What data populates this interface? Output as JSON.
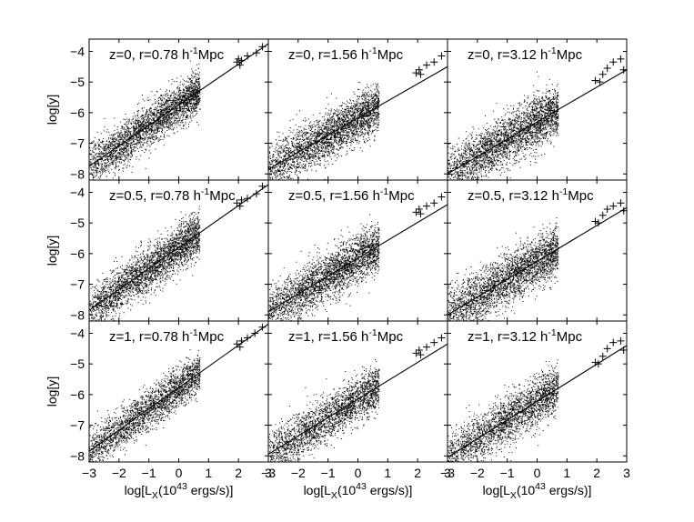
{
  "chart_data": {
    "type": "scatter",
    "layout": "3x3 panel grid",
    "shared_axes": {
      "xlabel": "log[L_X(10^43 ergs/s)]",
      "ylabel": "log[y]",
      "xlim": [
        -3,
        3
      ],
      "ylim": [
        -8.2,
        -3.6
      ],
      "xticks": [
        -3,
        -2,
        -1,
        0,
        1,
        2,
        3
      ],
      "yticks": [
        -8,
        -7,
        -6,
        -5,
        -4
      ],
      "grid": false
    },
    "panels": [
      {
        "row": 0,
        "col": 0,
        "title": "z=0, r=0.78 h^-1Mpc",
        "fit_line": [
          [
            -3,
            -7.75
          ],
          [
            3,
            -3.75
          ]
        ],
        "scatter": {
          "x_range": [
            -3,
            0.5
          ],
          "center_slope": 0.66,
          "center_intercept": -5.75,
          "spread": 0.35,
          "count": 3000
        },
        "crosses": [
          [
            1.95,
            -4.35
          ],
          [
            2.0,
            -4.25
          ],
          [
            2.05,
            -4.45
          ],
          [
            2.1,
            -4.3
          ],
          [
            2.3,
            -4.15
          ],
          [
            2.6,
            -4.05
          ],
          [
            2.8,
            -3.85
          ]
        ]
      },
      {
        "row": 0,
        "col": 1,
        "title": "z=0, r=1.56 h^-1Mpc",
        "fit_line": [
          [
            -3,
            -7.85
          ],
          [
            3,
            -4.5
          ]
        ],
        "scatter": {
          "x_range": [
            -3,
            0.5
          ],
          "center_slope": 0.56,
          "center_intercept": -6.17,
          "spread": 0.38,
          "count": 3000
        },
        "crosses": [
          [
            1.95,
            -4.7
          ],
          [
            2.05,
            -4.6
          ],
          [
            2.1,
            -4.75
          ],
          [
            2.3,
            -4.45
          ],
          [
            2.55,
            -4.35
          ],
          [
            2.8,
            -4.15
          ]
        ]
      },
      {
        "row": 0,
        "col": 2,
        "title": "z=0, r=3.12 h^-1Mpc",
        "fit_line": [
          [
            -3,
            -8.0
          ],
          [
            3,
            -4.6
          ]
        ],
        "scatter": {
          "x_range": [
            -3,
            0.5
          ],
          "center_slope": 0.56,
          "center_intercept": -6.3,
          "spread": 0.42,
          "count": 3000
        },
        "crosses": [
          [
            1.95,
            -4.95
          ],
          [
            2.1,
            -5.0
          ],
          [
            2.2,
            -4.75
          ],
          [
            2.35,
            -4.55
          ],
          [
            2.55,
            -4.35
          ],
          [
            2.8,
            -4.25
          ],
          [
            2.9,
            -4.6
          ]
        ]
      },
      {
        "row": 1,
        "col": 0,
        "title": "z=0.5, r=0.78 h^-1Mpc",
        "fit_line": [
          [
            -3,
            -7.85
          ],
          [
            3,
            -3.75
          ]
        ],
        "scatter": {
          "x_range": [
            -3,
            0.5
          ],
          "center_slope": 0.68,
          "center_intercept": -5.8,
          "spread": 0.36,
          "count": 3000
        },
        "crosses": [
          [
            1.95,
            -4.35
          ],
          [
            2.05,
            -4.45
          ],
          [
            2.1,
            -4.25
          ],
          [
            2.3,
            -4.2
          ],
          [
            2.6,
            -4.05
          ],
          [
            2.8,
            -3.8
          ]
        ]
      },
      {
        "row": 1,
        "col": 1,
        "title": "z=0.5, r=1.56 h^-1Mpc",
        "fit_line": [
          [
            -3,
            -7.9
          ],
          [
            3,
            -4.4
          ]
        ],
        "scatter": {
          "x_range": [
            -3,
            0.5
          ],
          "center_slope": 0.58,
          "center_intercept": -6.15,
          "spread": 0.38,
          "count": 3000
        },
        "crosses": [
          [
            1.95,
            -4.65
          ],
          [
            2.05,
            -4.55
          ],
          [
            2.1,
            -4.7
          ],
          [
            2.3,
            -4.45
          ],
          [
            2.55,
            -4.35
          ],
          [
            2.8,
            -4.15
          ]
        ]
      },
      {
        "row": 1,
        "col": 2,
        "title": "z=0.5, r=3.12 h^-1Mpc",
        "fit_line": [
          [
            -3,
            -8.0
          ],
          [
            3,
            -4.5
          ]
        ],
        "scatter": {
          "x_range": [
            -3,
            0.5
          ],
          "center_slope": 0.58,
          "center_intercept": -6.25,
          "spread": 0.42,
          "count": 3000
        },
        "crosses": [
          [
            1.95,
            -4.95
          ],
          [
            2.05,
            -5.0
          ],
          [
            2.2,
            -4.75
          ],
          [
            2.35,
            -4.55
          ],
          [
            2.55,
            -4.45
          ],
          [
            2.8,
            -4.35
          ],
          [
            2.9,
            -4.6
          ]
        ]
      },
      {
        "row": 2,
        "col": 0,
        "title": "z=1, r=0.78 h^-1Mpc",
        "fit_line": [
          [
            -3,
            -7.85
          ],
          [
            3,
            -3.7
          ]
        ],
        "scatter": {
          "x_range": [
            -3,
            0.5
          ],
          "center_slope": 0.69,
          "center_intercept": -5.78,
          "spread": 0.32,
          "count": 2500
        },
        "crosses": [
          [
            1.95,
            -4.35
          ],
          [
            2.05,
            -4.45
          ],
          [
            2.1,
            -4.25
          ],
          [
            2.3,
            -4.15
          ],
          [
            2.55,
            -4.0
          ],
          [
            2.8,
            -3.8
          ]
        ]
      },
      {
        "row": 2,
        "col": 1,
        "title": "z=1, r=1.56 h^-1Mpc",
        "fit_line": [
          [
            -3,
            -7.95
          ],
          [
            3,
            -4.35
          ]
        ],
        "scatter": {
          "x_range": [
            -3,
            0.5
          ],
          "center_slope": 0.6,
          "center_intercept": -6.15,
          "spread": 0.36,
          "count": 2500
        },
        "crosses": [
          [
            1.95,
            -4.65
          ],
          [
            2.05,
            -4.55
          ],
          [
            2.1,
            -4.7
          ],
          [
            2.3,
            -4.45
          ],
          [
            2.55,
            -4.3
          ],
          [
            2.8,
            -4.15
          ]
        ]
      },
      {
        "row": 2,
        "col": 2,
        "title": "z=1, r=3.12 h^-1Mpc",
        "fit_line": [
          [
            -3,
            -8.05
          ],
          [
            3,
            -4.4
          ]
        ],
        "scatter": {
          "x_range": [
            -3,
            0.5
          ],
          "center_slope": 0.61,
          "center_intercept": -6.22,
          "spread": 0.4,
          "count": 2500
        },
        "crosses": [
          [
            1.95,
            -4.95
          ],
          [
            2.05,
            -5.0
          ],
          [
            2.2,
            -4.75
          ],
          [
            2.35,
            -4.5
          ],
          [
            2.55,
            -4.3
          ],
          [
            2.8,
            -4.25
          ],
          [
            2.9,
            -4.55
          ]
        ]
      }
    ]
  }
}
